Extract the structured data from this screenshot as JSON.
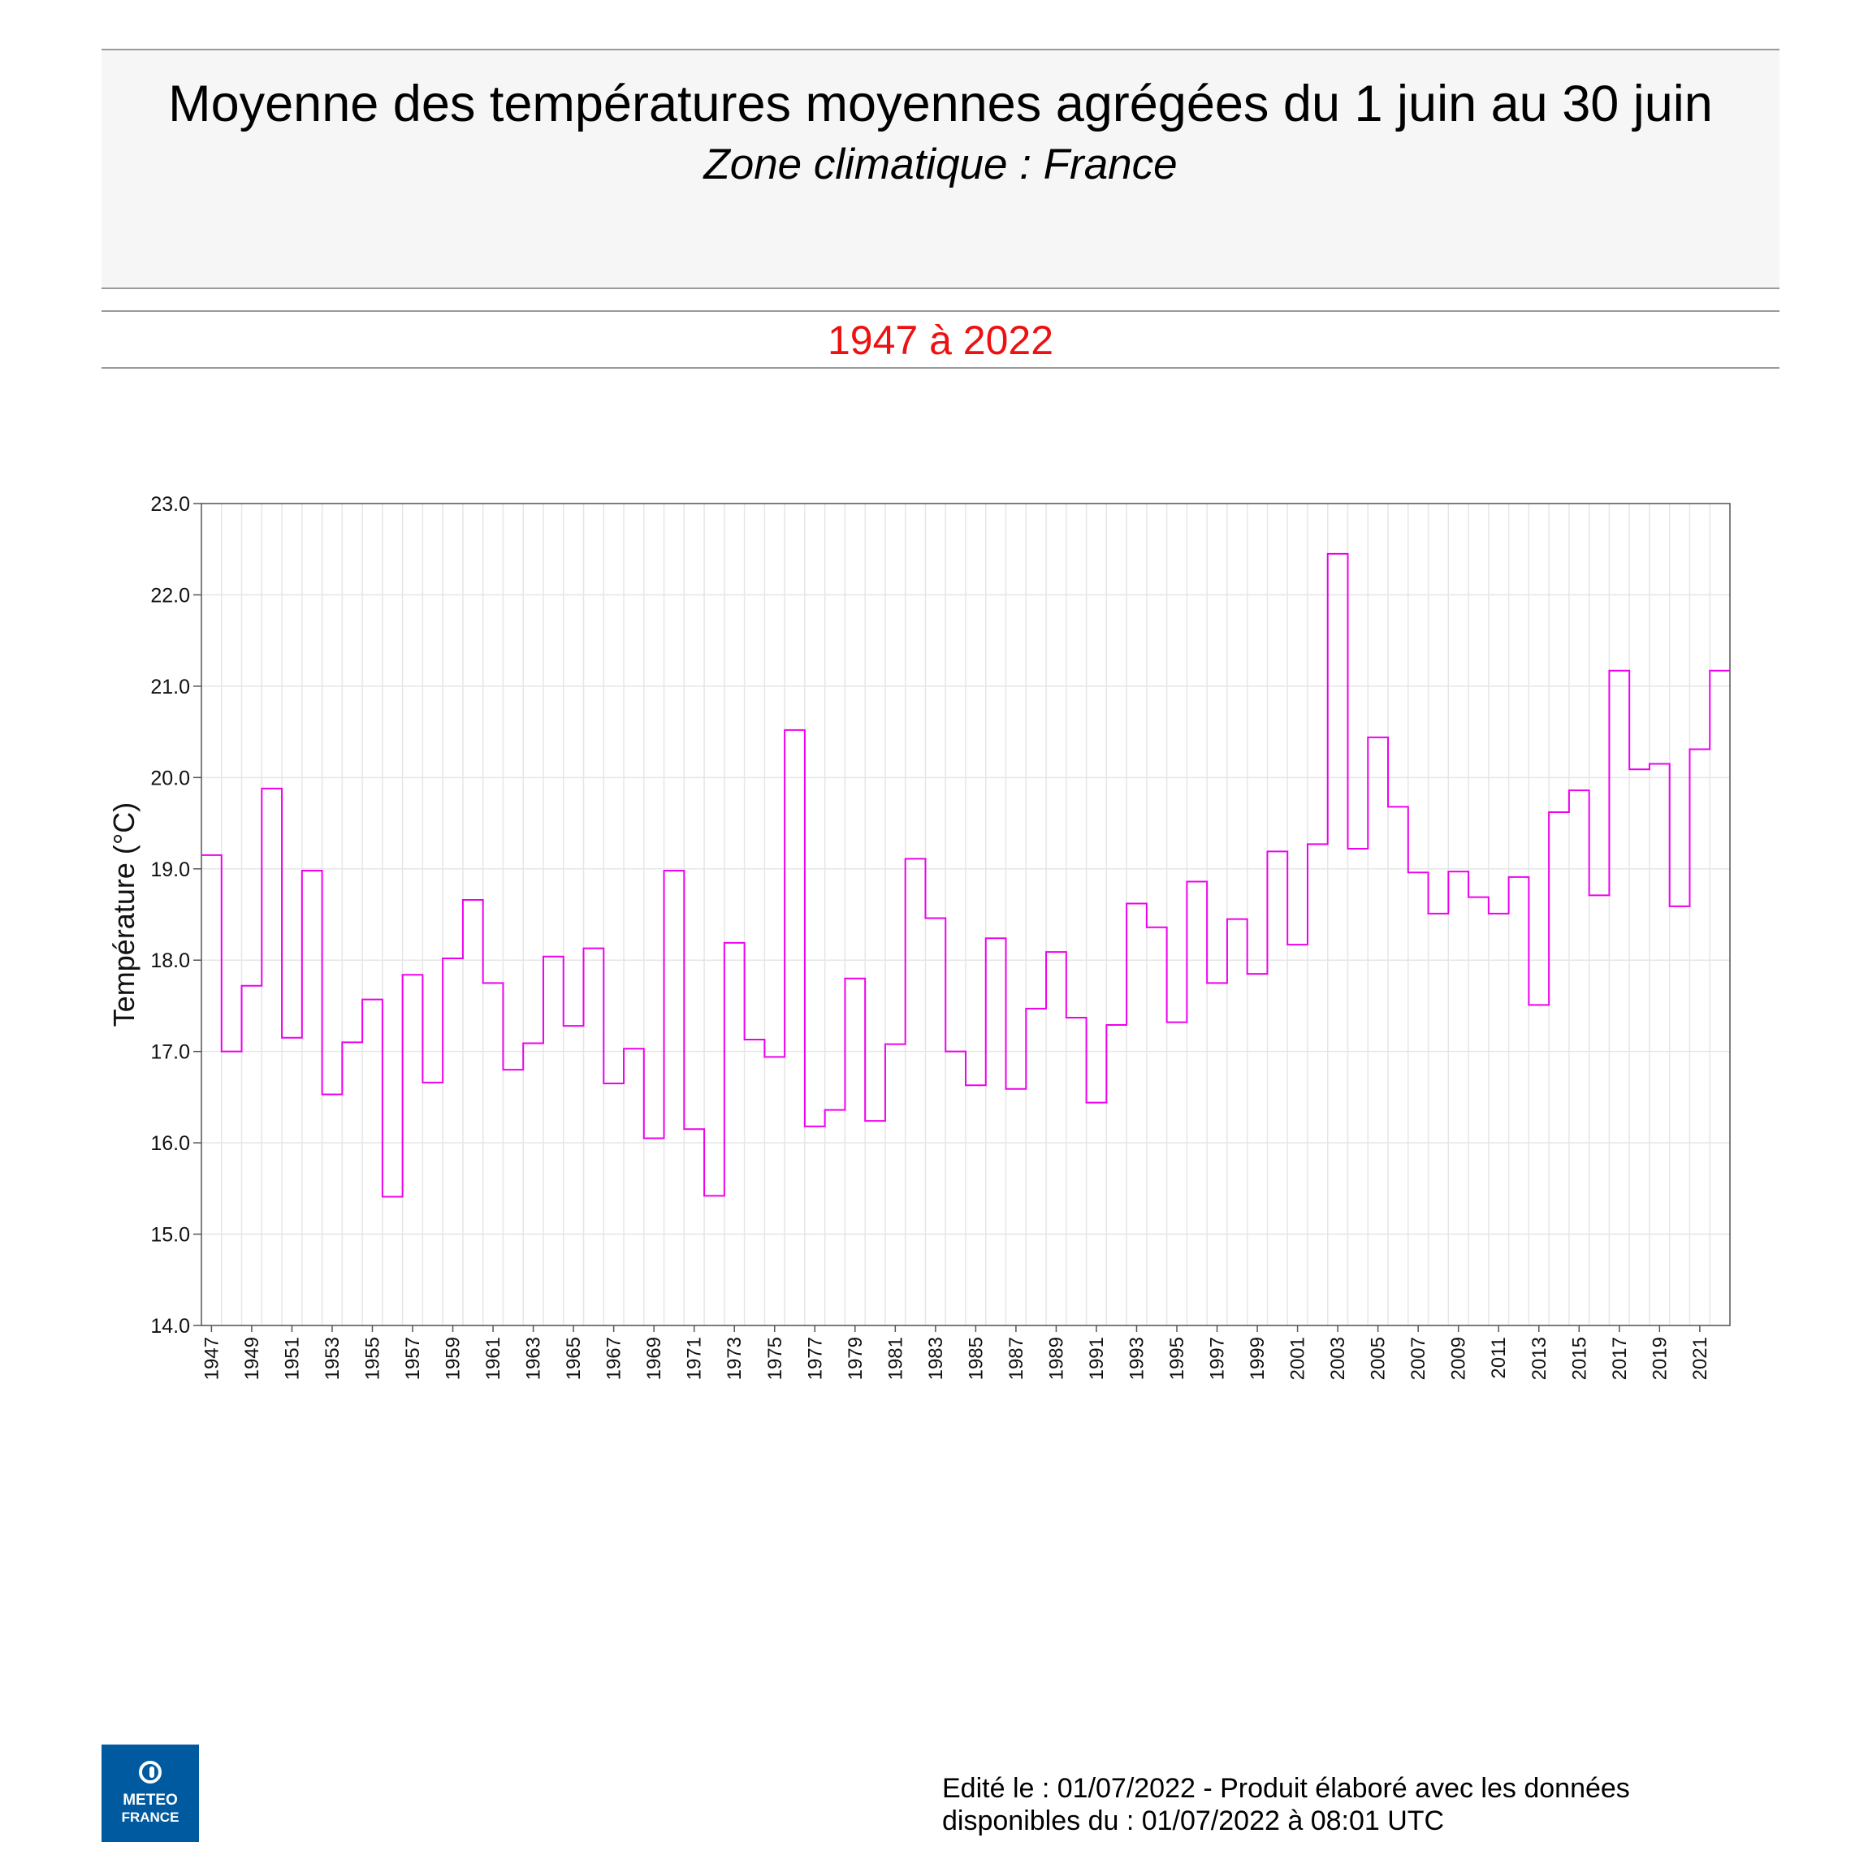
{
  "header": {
    "title": "Moyenne des températures moyennes agrégées du 1 juin au 30 juin",
    "subtitle": "Zone climatique : France",
    "period": "1947 à 2022"
  },
  "chart_data": {
    "type": "line",
    "step": true,
    "ylabel": "Température (°C)",
    "xlabel": "",
    "ylim": [
      14.0,
      23.0
    ],
    "yticks": [
      "14.0",
      "15.0",
      "16.0",
      "17.0",
      "18.0",
      "19.0",
      "20.0",
      "21.0",
      "22.0",
      "23.0"
    ],
    "xtick_labels": [
      "1947",
      "1949",
      "1951",
      "1953",
      "1955",
      "1957",
      "1959",
      "1961",
      "1963",
      "1965",
      "1967",
      "1969",
      "1971",
      "1973",
      "1975",
      "1977",
      "1979",
      "1981",
      "1983",
      "1985",
      "1987",
      "1989",
      "1991",
      "1993",
      "1995",
      "1997",
      "1999",
      "2001",
      "2003",
      "2005",
      "2007",
      "2009",
      "2011",
      "2013",
      "2015",
      "2017",
      "2019",
      "2021"
    ],
    "grid": true,
    "series": [
      {
        "color": "#ee00ee",
        "x": [
          1947,
          1948,
          1949,
          1950,
          1951,
          1952,
          1953,
          1954,
          1955,
          1956,
          1957,
          1958,
          1959,
          1960,
          1961,
          1962,
          1963,
          1964,
          1965,
          1966,
          1967,
          1968,
          1969,
          1970,
          1971,
          1972,
          1973,
          1974,
          1975,
          1976,
          1977,
          1978,
          1979,
          1980,
          1981,
          1982,
          1983,
          1984,
          1985,
          1986,
          1987,
          1988,
          1989,
          1990,
          1991,
          1992,
          1993,
          1994,
          1995,
          1996,
          1997,
          1998,
          1999,
          2000,
          2001,
          2002,
          2003,
          2004,
          2005,
          2006,
          2007,
          2008,
          2009,
          2010,
          2011,
          2012,
          2013,
          2014,
          2015,
          2016,
          2017,
          2018,
          2019,
          2020,
          2021,
          2022
        ],
        "values": [
          19.15,
          17.0,
          17.72,
          19.88,
          17.15,
          18.98,
          16.53,
          17.1,
          17.57,
          15.41,
          17.84,
          16.66,
          18.02,
          18.66,
          17.75,
          16.8,
          17.09,
          18.04,
          17.28,
          18.13,
          16.65,
          17.03,
          16.05,
          18.98,
          16.15,
          15.42,
          18.19,
          17.13,
          16.94,
          20.52,
          16.18,
          16.36,
          17.8,
          16.24,
          17.08,
          19.11,
          18.46,
          17.0,
          16.63,
          18.24,
          16.59,
          17.47,
          18.09,
          17.37,
          16.44,
          17.29,
          18.62,
          18.36,
          17.32,
          18.86,
          17.75,
          18.45,
          17.85,
          19.19,
          18.17,
          19.27,
          22.45,
          19.22,
          20.44,
          19.68,
          18.96,
          18.51,
          18.97,
          18.69,
          18.51,
          18.91,
          17.51,
          19.62,
          19.86,
          18.71,
          21.17,
          20.09,
          20.15,
          18.59,
          20.31,
          21.17
        ]
      }
    ]
  },
  "footer": {
    "line1": "Edité le : 01/07/2022 - Produit élaboré avec les données",
    "line2": "disponibles du : 01/07/2022 à 08:01 UTC"
  },
  "logo": {
    "line1": "METEO",
    "line2": "FRANCE",
    "color": "#005aa0"
  }
}
